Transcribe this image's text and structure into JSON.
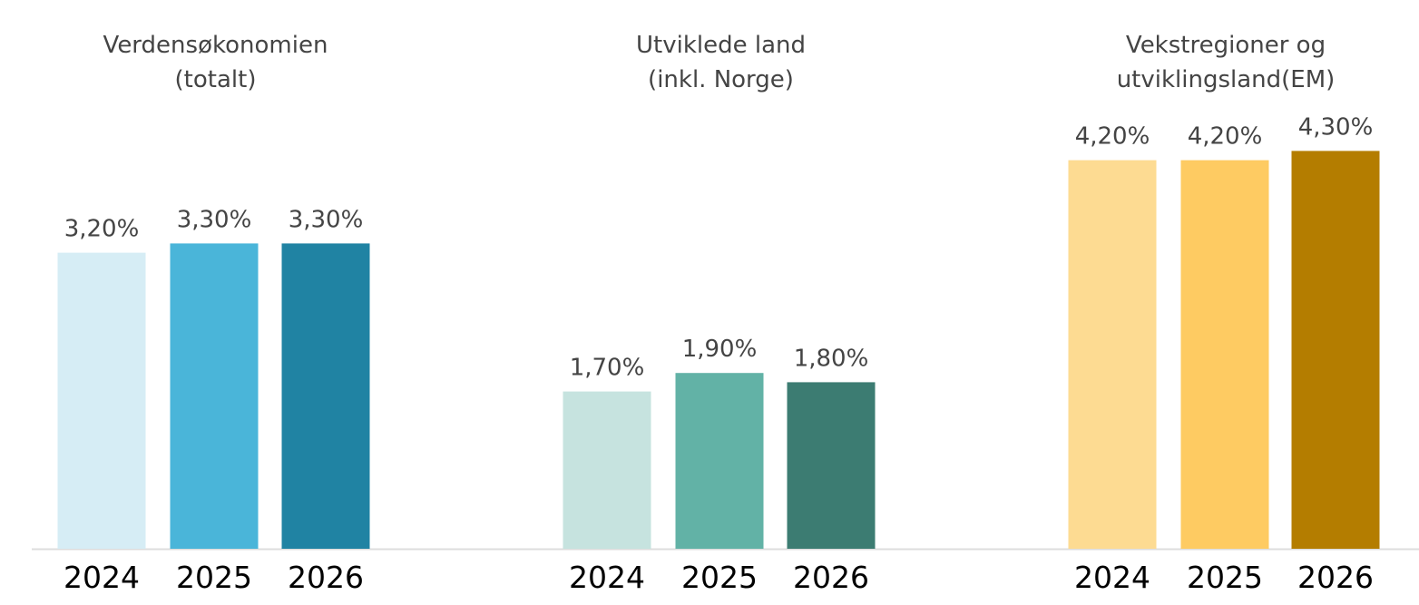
{
  "chart_data": [
    {
      "type": "bar",
      "title": [
        "Verdensøkonomien",
        "(totalt)"
      ],
      "categories": [
        "2024",
        "2025",
        "2026"
      ],
      "values": [
        3.2,
        3.3,
        3.3
      ],
      "value_labels": [
        "3,20%",
        "3,30%",
        "3,30%"
      ],
      "colors": [
        "#d6edf5",
        "#4ab5d9",
        "#2083a3"
      ]
    },
    {
      "type": "bar",
      "title": [
        "Utviklede land",
        "(inkl. Norge)"
      ],
      "categories": [
        "2024",
        "2025",
        "2026"
      ],
      "values": [
        1.7,
        1.9,
        1.8
      ],
      "value_labels": [
        "1,70%",
        "1,90%",
        "1,80%"
      ],
      "colors": [
        "#c6e3df",
        "#62b2a6",
        "#3c7c72"
      ]
    },
    {
      "type": "bar",
      "title": [
        "Vekstregioner og",
        "utviklingsland(EM)"
      ],
      "categories": [
        "2024",
        "2025",
        "2026"
      ],
      "values": [
        4.2,
        4.2,
        4.3
      ],
      "value_labels": [
        "4,20%",
        "4,20%",
        "4,30%"
      ],
      "colors": [
        "#fddb92",
        "#fecb62",
        "#b47d00"
      ]
    }
  ]
}
